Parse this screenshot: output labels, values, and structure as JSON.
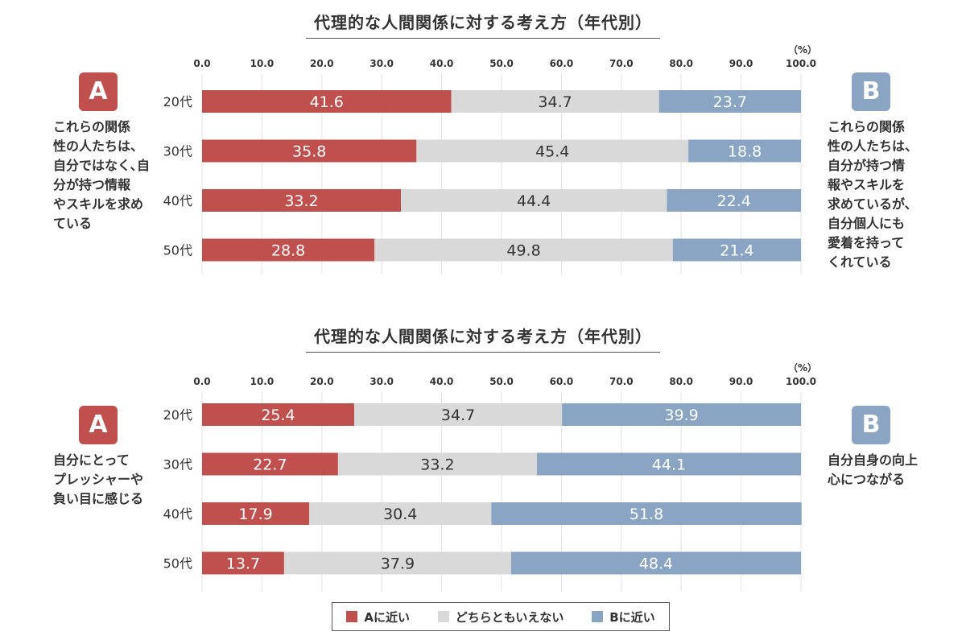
{
  "colors": {
    "a": "#c0504d",
    "neutral": "#d9d9d9",
    "b": "#8aa4c4"
  },
  "legend": {
    "a": "Aに近い",
    "neutral": "どちらともいえない",
    "b": "Bに近い"
  },
  "panels": [
    {
      "badge_a": "A",
      "badge_b": "B",
      "note_a": "これらの関係\n性の人たちは、\n自分ではなく､自\n分が持つ情報\nやスキルを求め\nている",
      "note_b": "これらの関係\n性の人たちは、\n自分が持つ情\n報やスキルを\n求めているが、\n自分個人にも\n愛着を持って\nくれている"
    },
    {
      "badge_a": "A",
      "badge_b": "B",
      "note_a": "自分にとって\nプレッシャーや\n負い目に感じる",
      "note_b": "自分自身の向上\n心につながる"
    }
  ],
  "chart_data": [
    {
      "type": "bar",
      "orientation": "horizontal-stacked",
      "title": "代理的な人間関係に対する考え方（年代別）",
      "unit_label": "（%）",
      "xlim": [
        0,
        100
      ],
      "ticks": [
        "0.0",
        "10.0",
        "20.0",
        "30.0",
        "40.0",
        "50.0",
        "60.0",
        "70.0",
        "80.0",
        "90.0",
        "100.0"
      ],
      "categories": [
        "20代",
        "30代",
        "40代",
        "50代"
      ],
      "series": [
        {
          "name": "Aに近い",
          "values": [
            41.6,
            35.8,
            33.2,
            28.8
          ]
        },
        {
          "name": "どちらともいえない",
          "values": [
            34.7,
            45.4,
            44.4,
            49.8
          ]
        },
        {
          "name": "Bに近い",
          "values": [
            23.7,
            18.8,
            22.4,
            21.4
          ]
        }
      ]
    },
    {
      "type": "bar",
      "orientation": "horizontal-stacked",
      "title": "代理的な人間関係に対する考え方（年代別）",
      "unit_label": "（%）",
      "xlim": [
        0,
        100
      ],
      "ticks": [
        "0.0",
        "10.0",
        "20.0",
        "30.0",
        "40.0",
        "50.0",
        "60.0",
        "70.0",
        "80.0",
        "90.0",
        "100.0"
      ],
      "categories": [
        "20代",
        "30代",
        "40代",
        "50代"
      ],
      "series": [
        {
          "name": "Aに近い",
          "values": [
            25.4,
            22.7,
            17.9,
            13.7
          ]
        },
        {
          "name": "どちらともいえない",
          "values": [
            34.7,
            33.2,
            30.4,
            37.9
          ]
        },
        {
          "name": "Bに近い",
          "values": [
            39.9,
            44.1,
            51.8,
            48.4
          ]
        }
      ]
    }
  ]
}
